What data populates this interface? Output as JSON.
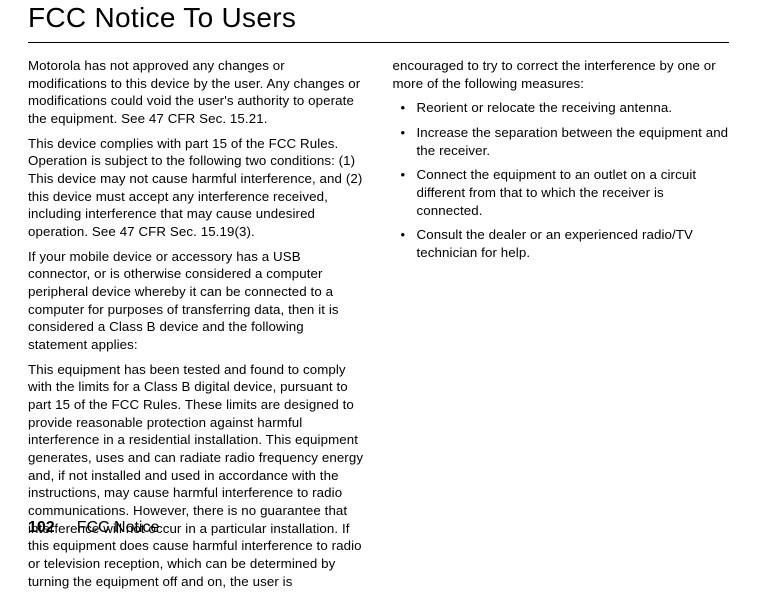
{
  "title": "FCC Notice To Users",
  "left_column": {
    "p1": "Motorola has not approved any changes or modifications to this device by the user. Any changes or modifications could void the user's authority to operate the equipment. See 47 CFR Sec. 15.21.",
    "p2": "This device complies with part 15 of the FCC Rules. Operation is subject to the following two conditions: (1) This device may not cause harmful interference, and (2) this device must accept any interference received, including interference that may cause undesired operation. See 47 CFR Sec. 15.19(3).",
    "p3": "If your mobile device or accessory has a USB connector, or is otherwise considered a computer peripheral device whereby it can be connected to a computer for purposes of transferring data, then it is considered a Class B device and the following statement applies:",
    "p4": "This equipment has been tested and found to comply with the limits for a Class B digital device, pursuant to part 15 of the FCC Rules. These limits are designed to provide reasonable protection against harmful interference in a residential installation. This equipment generates, uses and can radiate radio frequency energy and, if not installed and used in accordance with the instructions, may cause harmful interference to radio communications. However, there is no guarantee that interference will not occur in a particular installation. If this equipment does cause harmful interference to radio or television reception, which can be determined by turning the equipment off and on, the user is"
  },
  "right_column": {
    "p1": "encouraged to try to correct the interference by one or more of the following measures:",
    "bullets": [
      "Reorient or relocate the receiving antenna.",
      "Increase the separation between the equipment and the receiver.",
      "Connect the equipment to an outlet on a circuit different from that to which the receiver is connected.",
      "Consult the dealer or an experienced radio/TV technician for help."
    ]
  },
  "footer": {
    "page_number": "102",
    "label": "FCC Notice"
  },
  "styles": {
    "background_color": "#ffffff",
    "text_color": "#000000",
    "title_fontsize": 28,
    "body_fontsize": 13.3,
    "footer_num_fontsize": 16,
    "footer_label_fontsize": 16,
    "line_height": 1.33
  }
}
